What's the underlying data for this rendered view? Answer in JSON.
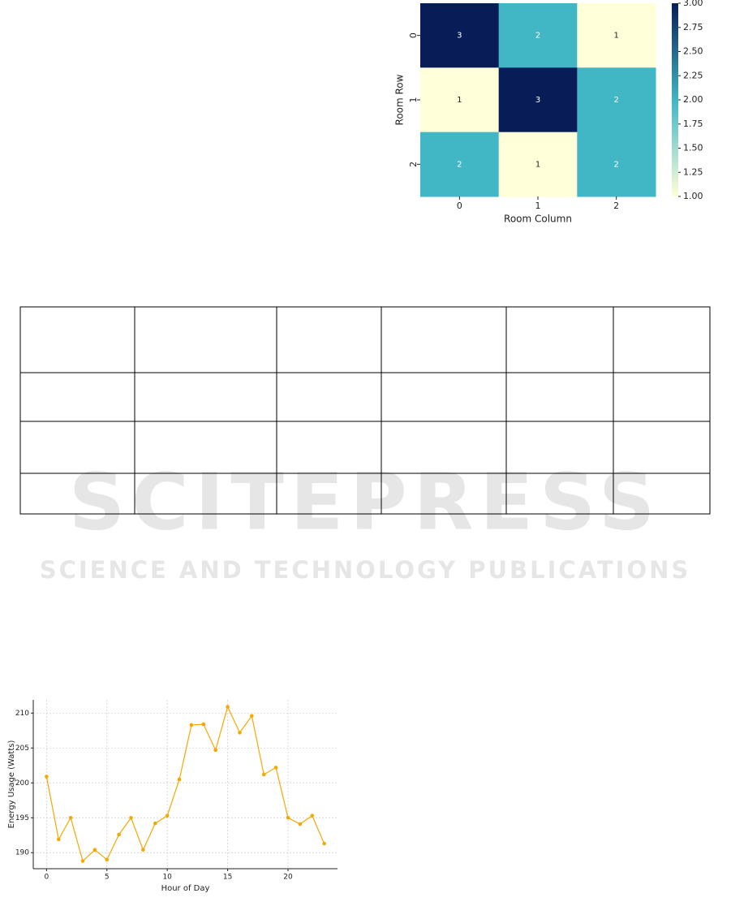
{
  "chart_data": [
    {
      "type": "heatmap",
      "xlabel": "Room Column",
      "ylabel": "Room Row",
      "column_categories": [
        "0",
        "1",
        "2"
      ],
      "row_categories": [
        "0",
        "1",
        "2"
      ],
      "values": [
        [
          3,
          2,
          1
        ],
        [
          1,
          3,
          2
        ],
        [
          2,
          1,
          2
        ]
      ],
      "colors": [
        "#ffffd9",
        "#41b6c4",
        "#081d58"
      ],
      "colorbar_lim": [
        1,
        3
      ],
      "colorbar_ticks": [
        {
          "value": 1,
          "label": "1.00"
        },
        {
          "value": 1.25,
          "label": "1.25"
        },
        {
          "value": 1.5,
          "label": "1.50"
        },
        {
          "value": 1.75,
          "label": "1.75"
        },
        {
          "value": 2,
          "label": "2.00"
        },
        {
          "value": 2.25,
          "label": "2.25"
        },
        {
          "value": 2.5,
          "label": "2.50"
        },
        {
          "value": 2.75,
          "label": "2.75"
        },
        {
          "value": 3,
          "label": "3.00"
        }
      ]
    },
    {
      "type": "line",
      "xlabel": "Hour of Day",
      "ylabel": "Energy Usage (Watts)",
      "x": [
        0,
        1,
        2,
        3,
        4,
        5,
        6,
        7,
        8,
        9,
        10,
        11,
        12,
        13,
        14,
        15,
        16,
        17,
        18,
        19,
        20,
        21,
        22,
        23
      ],
      "values": [
        200.9,
        191.9,
        195.0,
        188.8,
        190.4,
        189.0,
        192.6,
        195.0,
        190.4,
        194.2,
        195.3,
        200.5,
        208.3,
        208.4,
        204.7,
        210.9,
        207.2,
        209.6,
        201.2,
        202.2,
        195.0,
        194.1,
        195.3,
        191.3
      ],
      "color": "#f5a800",
      "xlim": [
        -1.1,
        24.1
      ],
      "ylim": [
        187.7,
        211.9
      ],
      "xticks": [
        0,
        5,
        10,
        15,
        20
      ],
      "yticks": [
        190,
        195,
        200,
        205,
        210
      ],
      "grid": true
    }
  ],
  "watermark": {
    "logo": "SCITEPRESS",
    "tagline": "SCIENCE AND TECHNOLOGY PUBLICATIONS"
  }
}
